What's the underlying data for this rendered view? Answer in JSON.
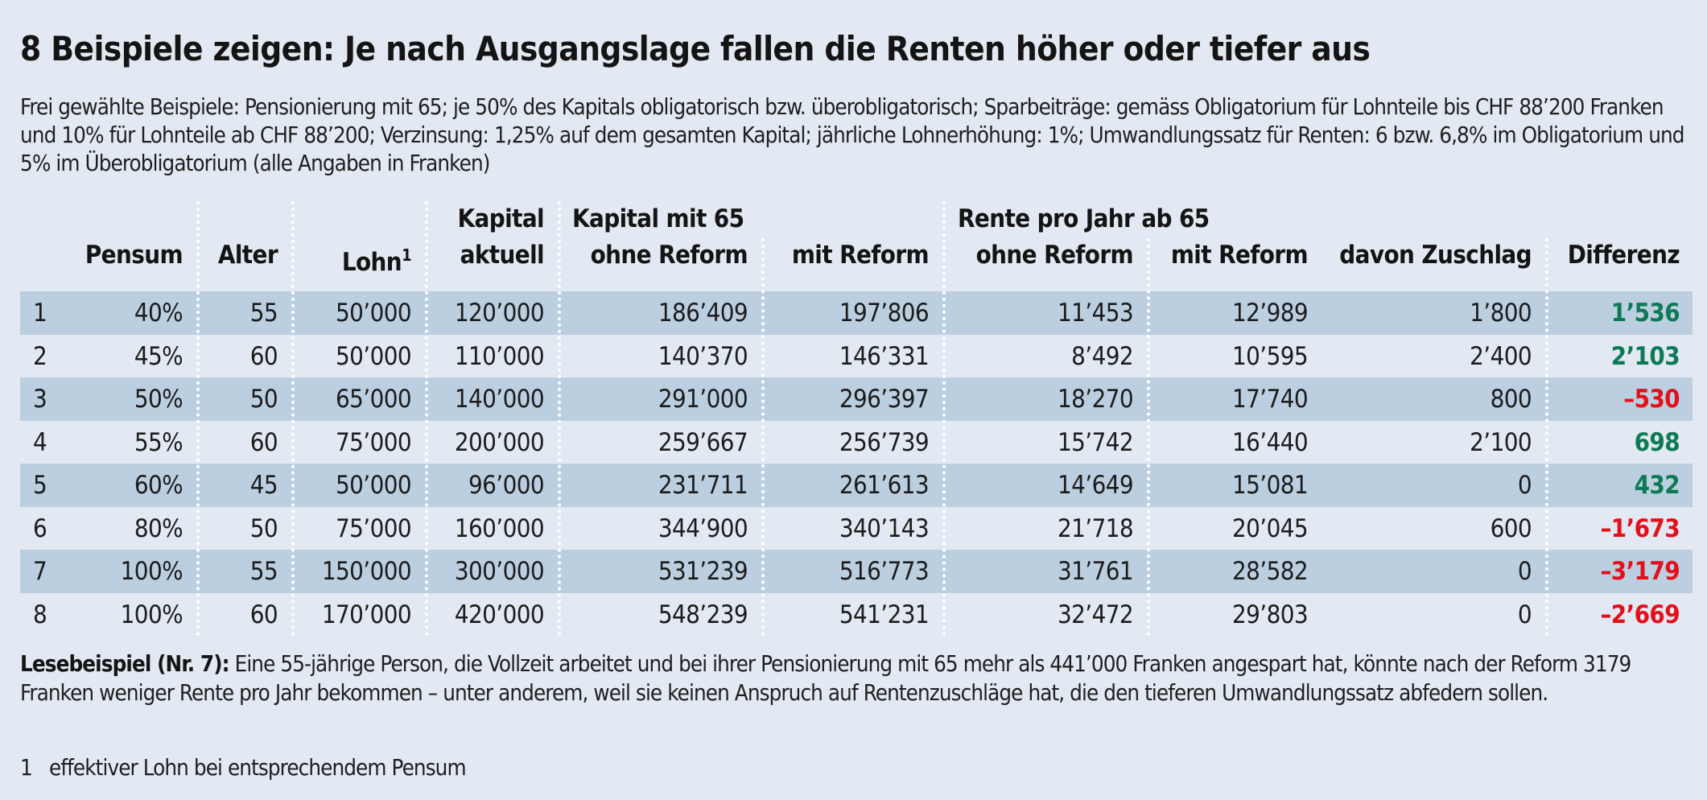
{
  "title": "8 Beispiele zeigen: Je nach Ausgangslage fallen die Renten höher oder tiefer aus",
  "intro": "Frei gewählte Beispiele: Pensionierung mit 65; je 50% des Kapitals obligatorisch bzw. überobligatorisch; Sparbeiträge: gemäss Obligatorium für Lohnteile bis CHF 88’200 Franken und 10% für Lohnteile ab CHF 88’200; Verzinsung: 1,25% auf dem gesamten Kapital; jährliche Lohnerhöhung: 1%; Umwandlungssatz für Renten: 6 bzw. 6,8% im Obligatorium und 5% im Überobligatorium (alle Angaben in Franken)",
  "table": {
    "group_headers": {
      "kapital_mit_65": "Kapital mit 65",
      "rente_pro_jahr": "Rente pro Jahr ab 65"
    },
    "headers": {
      "pensum": "Pensum",
      "alter": "Alter",
      "lohn": "Lohn",
      "lohn_footnote": "1",
      "kapital_aktuell_1": "Kapital",
      "kapital_aktuell_2": "aktuell",
      "kapital_ohne": "ohne Reform",
      "kapital_mit": "mit Reform",
      "rente_ohne": "ohne Reform",
      "rente_mit": "mit Reform",
      "zuschlag": "davon Zuschlag",
      "differenz": "Differenz"
    },
    "rows": [
      {
        "nr": "1",
        "pensum": "40%",
        "alter": "55",
        "lohn": "50’000",
        "kapital_aktuell": "120’000",
        "kapital_ohne": "186’409",
        "kapital_mit": "197’806",
        "rente_ohne": "11’453",
        "rente_mit": "12’989",
        "zuschlag": "1’800",
        "differenz": "1’536",
        "sign": "positive"
      },
      {
        "nr": "2",
        "pensum": "45%",
        "alter": "60",
        "lohn": "50’000",
        "kapital_aktuell": "110’000",
        "kapital_ohne": "140’370",
        "kapital_mit": "146’331",
        "rente_ohne": "8’492",
        "rente_mit": "10’595",
        "zuschlag": "2’400",
        "differenz": "2’103",
        "sign": "positive"
      },
      {
        "nr": "3",
        "pensum": "50%",
        "alter": "50",
        "lohn": "65’000",
        "kapital_aktuell": "140’000",
        "kapital_ohne": "291’000",
        "kapital_mit": "296’397",
        "rente_ohne": "18’270",
        "rente_mit": "17’740",
        "zuschlag": "800",
        "differenz": "–530",
        "sign": "negative"
      },
      {
        "nr": "4",
        "pensum": "55%",
        "alter": "60",
        "lohn": "75’000",
        "kapital_aktuell": "200’000",
        "kapital_ohne": "259’667",
        "kapital_mit": "256’739",
        "rente_ohne": "15’742",
        "rente_mit": "16’440",
        "zuschlag": "2’100",
        "differenz": "698",
        "sign": "positive"
      },
      {
        "nr": "5",
        "pensum": "60%",
        "alter": "45",
        "lohn": "50’000",
        "kapital_aktuell": "96’000",
        "kapital_ohne": "231’711",
        "kapital_mit": "261’613",
        "rente_ohne": "14’649",
        "rente_mit": "15’081",
        "zuschlag": "0",
        "differenz": "432",
        "sign": "positive"
      },
      {
        "nr": "6",
        "pensum": "80%",
        "alter": "50",
        "lohn": "75’000",
        "kapital_aktuell": "160’000",
        "kapital_ohne": "344’900",
        "kapital_mit": "340’143",
        "rente_ohne": "21’718",
        "rente_mit": "20’045",
        "zuschlag": "600",
        "differenz": "–1’673",
        "sign": "negative"
      },
      {
        "nr": "7",
        "pensum": "100%",
        "alter": "55",
        "lohn": "150’000",
        "kapital_aktuell": "300’000",
        "kapital_ohne": "531’239",
        "kapital_mit": "516’773",
        "rente_ohne": "31’761",
        "rente_mit": "28’582",
        "zuschlag": "0",
        "differenz": "–3’179",
        "sign": "negative"
      },
      {
        "nr": "8",
        "pensum": "100%",
        "alter": "60",
        "lohn": "170’000",
        "kapital_aktuell": "420’000",
        "kapital_ohne": "548’239",
        "kapital_mit": "541’231",
        "rente_ohne": "32’472",
        "rente_mit": "29’803",
        "zuschlag": "0",
        "differenz": "–2’669",
        "sign": "negative"
      }
    ]
  },
  "reading_example": {
    "label": "Lesebeispiel (Nr. 7):",
    "text": " Eine 55-jährige Person, die Vollzeit arbeitet und bei ihrer Pensionierung mit 65 mehr als 441’000 Franken angespart hat, könnte nach der Reform 3179 Franken weniger Rente pro Jahr bekommen – unter anderem, weil sie keinen Anspruch auf Rentenzuschläge hat, die den tieferen Umwandlungssatz abfedern sollen."
  },
  "footnote": {
    "number": "1",
    "text": "effektiver Lohn bei entsprechendem Pensum"
  },
  "colors": {
    "background": "#e2e9f2",
    "row_shaded": "#bccfe1",
    "positive": "#0e7a55",
    "negative": "#e3101c"
  }
}
